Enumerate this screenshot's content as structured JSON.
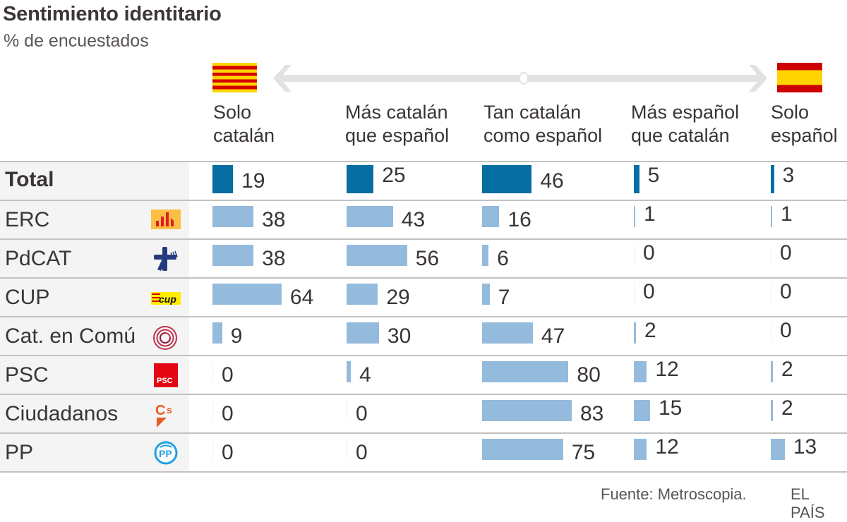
{
  "header": {
    "title": "Sentimiento identitario",
    "subtitle": "% de encuestados"
  },
  "icons": {
    "left_flag": "catalonia-flag-icon",
    "right_flag": "spain-flag-icon",
    "scale_arrow": "double-arrow-icon"
  },
  "colors": {
    "total_bar": "#066ea2",
    "party_bar": "#94bbdb",
    "label_background": "#f4f4f4",
    "grid": "#c2c2c2"
  },
  "chart_data": {
    "type": "table",
    "title": "Sentimiento identitario",
    "subtitle": "% de encuestados",
    "columns": [
      {
        "line1": "Solo",
        "line2": "catalán"
      },
      {
        "line1": "Más catalán",
        "line2": "que español"
      },
      {
        "line1": "Tan catalán",
        "line2": "como español"
      },
      {
        "line1": "Más español",
        "line2": "que catalán"
      },
      {
        "line1": "Solo",
        "line2": "español"
      }
    ],
    "rows": [
      {
        "label": "Total",
        "logo": "",
        "is_total": true,
        "values": [
          19,
          25,
          46,
          5,
          3
        ]
      },
      {
        "label": "ERC",
        "logo": "erc-logo-icon",
        "is_total": false,
        "values": [
          38,
          43,
          16,
          1,
          1
        ]
      },
      {
        "label": "PdCAT",
        "logo": "pdcat-logo-icon",
        "is_total": false,
        "values": [
          38,
          56,
          6,
          0,
          0
        ]
      },
      {
        "label": "CUP",
        "logo": "cup-logo-icon",
        "is_total": false,
        "values": [
          64,
          29,
          7,
          0,
          0
        ]
      },
      {
        "label": "Cat. en Comú",
        "logo": "catencomu-logo-icon",
        "is_total": false,
        "values": [
          9,
          30,
          47,
          2,
          0
        ]
      },
      {
        "label": "PSC",
        "logo": "psc-logo-icon",
        "is_total": false,
        "values": [
          0,
          4,
          80,
          12,
          2
        ]
      },
      {
        "label": "Ciudadanos",
        "logo": "ciudadanos-logo-icon",
        "is_total": false,
        "values": [
          0,
          0,
          83,
          15,
          2
        ]
      },
      {
        "label": "PP",
        "logo": "pp-logo-icon",
        "is_total": false,
        "values": [
          0,
          0,
          75,
          12,
          13
        ]
      }
    ],
    "unit": "%"
  },
  "footer": {
    "source": "Fuente: Metroscopia.",
    "brand": "EL PAÍS"
  }
}
